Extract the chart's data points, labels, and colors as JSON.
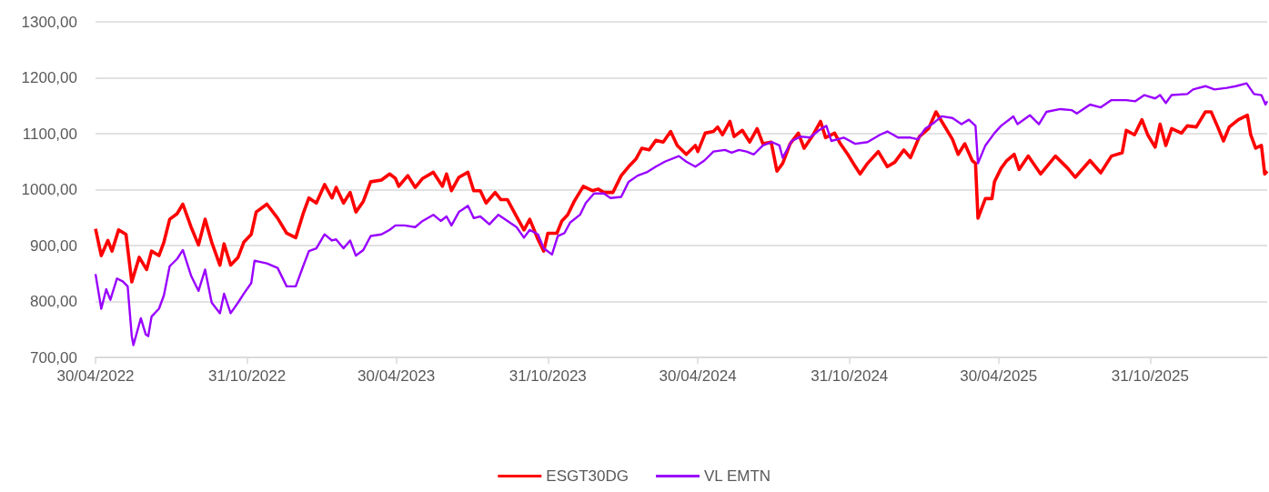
{
  "chart_data": {
    "type": "line",
    "xlim": [
      "2022-04-30",
      "2026-03-22"
    ],
    "xticks": [
      {
        "value": "2022-04-30",
        "label": "30/04/2022"
      },
      {
        "value": "2022-10-31",
        "label": "31/10/2022"
      },
      {
        "value": "2023-04-30",
        "label": "30/04/2023"
      },
      {
        "value": "2023-10-31",
        "label": "31/10/2023"
      },
      {
        "value": "2024-04-30",
        "label": "30/04/2024"
      },
      {
        "value": "2024-10-31",
        "label": "31/10/2024"
      },
      {
        "value": "2025-04-30",
        "label": "30/04/2025"
      },
      {
        "value": "2025-10-31",
        "label": "31/10/2025"
      }
    ],
    "ylim": [
      700,
      1300
    ],
    "yticks": [
      {
        "value": 700,
        "label": "700,00"
      },
      {
        "value": 800,
        "label": "800,00"
      },
      {
        "value": 900,
        "label": "900,00"
      },
      {
        "value": 1000,
        "label": "1000,00"
      },
      {
        "value": 1100,
        "label": "1100,00"
      },
      {
        "value": 1200,
        "label": "1200,00"
      },
      {
        "value": 1300,
        "label": "1300,00"
      }
    ],
    "grid": "y",
    "legend": "bottom",
    "series": [
      {
        "name": "ESGT30DG",
        "color": "#ff0000",
        "x": [
          "2022-04-30",
          "2022-05-07",
          "2022-05-15",
          "2022-05-20",
          "2022-05-28",
          "2022-06-06",
          "2022-06-13",
          "2022-06-22",
          "2022-07-01",
          "2022-07-07",
          "2022-07-16",
          "2022-07-22",
          "2022-07-29",
          "2022-08-07",
          "2022-08-14",
          "2022-08-24",
          "2022-09-02",
          "2022-09-10",
          "2022-09-18",
          "2022-09-28",
          "2022-10-03",
          "2022-10-11",
          "2022-10-20",
          "2022-10-27",
          "2022-11-05",
          "2022-11-11",
          "2022-11-24",
          "2022-12-07",
          "2022-12-18",
          "2022-12-29",
          "2023-01-07",
          "2023-01-14",
          "2023-01-23",
          "2023-02-02",
          "2023-02-11",
          "2023-02-16",
          "2023-02-25",
          "2023-03-05",
          "2023-03-12",
          "2023-03-21",
          "2023-03-30",
          "2023-04-12",
          "2023-04-22",
          "2023-04-29",
          "2023-05-03",
          "2023-05-14",
          "2023-05-23",
          "2023-06-01",
          "2023-06-14",
          "2023-06-25",
          "2023-06-30",
          "2023-07-06",
          "2023-07-15",
          "2023-07-26",
          "2023-08-02",
          "2023-08-10",
          "2023-08-17",
          "2023-08-28",
          "2023-09-04",
          "2023-09-12",
          "2023-09-23",
          "2023-10-02",
          "2023-10-09",
          "2023-10-19",
          "2023-10-26",
          "2023-10-31",
          "2023-11-11",
          "2023-11-17",
          "2023-11-24",
          "2023-12-02",
          "2023-12-13",
          "2023-12-24",
          "2023-12-31",
          "2024-01-07",
          "2024-01-18",
          "2024-01-28",
          "2024-02-06",
          "2024-02-15",
          "2024-02-22",
          "2024-03-02",
          "2024-03-10",
          "2024-03-19",
          "2024-03-28",
          "2024-04-05",
          "2024-04-16",
          "2024-04-27",
          "2024-04-30",
          "2024-05-09",
          "2024-05-19",
          "2024-05-24",
          "2024-05-30",
          "2024-06-08",
          "2024-06-13",
          "2024-06-23",
          "2024-07-02",
          "2024-07-11",
          "2024-07-18",
          "2024-07-28",
          "2024-08-04",
          "2024-08-11",
          "2024-08-20",
          "2024-08-30",
          "2024-09-06",
          "2024-09-17",
          "2024-09-26",
          "2024-10-02",
          "2024-10-13",
          "2024-10-20",
          "2024-10-29",
          "2024-11-06",
          "2024-11-13",
          "2024-11-22",
          "2024-12-05",
          "2024-12-16",
          "2024-12-25",
          "2025-01-05",
          "2025-01-13",
          "2025-01-24",
          "2025-02-04",
          "2025-02-13",
          "2025-02-22",
          "2025-03-05",
          "2025-03-12",
          "2025-03-20",
          "2025-03-29",
          "2025-04-02",
          "2025-04-05",
          "2025-04-14",
          "2025-04-22",
          "2025-04-25",
          "2025-05-03",
          "2025-05-10",
          "2025-05-19",
          "2025-05-25",
          "2025-06-05",
          "2025-06-20",
          "2025-07-08",
          "2025-07-23",
          "2025-08-01",
          "2025-08-19",
          "2025-09-01",
          "2025-09-14",
          "2025-09-27",
          "2025-10-02",
          "2025-10-12",
          "2025-10-21",
          "2025-10-28",
          "2025-11-06",
          "2025-11-12",
          "2025-11-19",
          "2025-11-26",
          "2025-12-08",
          "2025-12-15",
          "2025-12-26",
          "2026-01-06",
          "2026-01-13",
          "2026-01-21",
          "2026-01-28",
          "2026-02-04",
          "2026-02-15",
          "2026-02-26",
          "2026-03-02",
          "2026-03-08",
          "2026-03-15",
          "2026-03-19",
          "2026-03-22"
        ],
        "values": [
          930,
          882,
          909,
          890,
          928,
          920,
          835,
          879,
          857,
          890,
          882,
          906,
          947,
          957,
          974,
          933,
          901,
          947,
          906,
          865,
          903,
          865,
          879,
          906,
          920,
          960,
          974,
          949,
          922,
          914,
          957,
          985,
          976,
          1009,
          985,
          1004,
          976,
          995,
          960,
          979,
          1014,
          1017,
          1028,
          1020,
          1006,
          1025,
          1004,
          1020,
          1031,
          1006,
          1028,
          998,
          1022,
          1031,
          998,
          998,
          976,
          995,
          982,
          982,
          952,
          928,
          947,
          911,
          890,
          922,
          922,
          944,
          955,
          979,
          1006,
          998,
          1001,
          995,
          995,
          1025,
          1041,
          1055,
          1074,
          1071,
          1088,
          1085,
          1104,
          1079,
          1063,
          1079,
          1068,
          1101,
          1104,
          1112,
          1098,
          1122,
          1095,
          1106,
          1085,
          1109,
          1082,
          1085,
          1033,
          1047,
          1082,
          1101,
          1074,
          1098,
          1122,
          1093,
          1101,
          1082,
          1063,
          1044,
          1028,
          1047,
          1068,
          1041,
          1049,
          1071,
          1057,
          1095,
          1109,
          1139,
          1117,
          1090,
          1063,
          1082,
          1052,
          1047,
          949,
          984,
          984,
          1014,
          1038,
          1052,
          1063,
          1036,
          1060,
          1028,
          1060,
          1038,
          1022,
          1052,
          1030,
          1060,
          1066,
          1106,
          1098,
          1125,
          1098,
          1076,
          1117,
          1079,
          1109,
          1101,
          1114,
          1112,
          1139,
          1139,
          1112,
          1087,
          1112,
          1125,
          1133,
          1098,
          1074,
          1079,
          1028,
          1033
        ]
      },
      {
        "name": "VL EMTN",
        "color": "#9900ff",
        "x": [
          "2022-04-30",
          "2022-05-07",
          "2022-05-13",
          "2022-05-18",
          "2022-05-26",
          "2022-06-02",
          "2022-06-08",
          "2022-06-13",
          "2022-06-15",
          "2022-06-24",
          "2022-06-30",
          "2022-07-03",
          "2022-07-07",
          "2022-07-16",
          "2022-07-22",
          "2022-07-29",
          "2022-08-07",
          "2022-08-14",
          "2022-08-24",
          "2022-09-02",
          "2022-09-10",
          "2022-09-18",
          "2022-09-28",
          "2022-10-03",
          "2022-10-11",
          "2022-10-20",
          "2022-10-27",
          "2022-11-05",
          "2022-11-09",
          "2022-11-24",
          "2022-12-07",
          "2022-12-18",
          "2022-12-29",
          "2023-01-07",
          "2023-01-14",
          "2023-01-23",
          "2023-02-02",
          "2023-02-11",
          "2023-02-16",
          "2023-02-25",
          "2023-03-05",
          "2023-03-12",
          "2023-03-21",
          "2023-03-30",
          "2023-04-12",
          "2023-04-22",
          "2023-04-29",
          "2023-05-10",
          "2023-05-23",
          "2023-06-01",
          "2023-06-14",
          "2023-06-23",
          "2023-06-30",
          "2023-07-06",
          "2023-07-15",
          "2023-07-26",
          "2023-08-02",
          "2023-08-10",
          "2023-08-21",
          "2023-09-01",
          "2023-09-12",
          "2023-09-23",
          "2023-10-02",
          "2023-10-09",
          "2023-10-19",
          "2023-10-26",
          "2023-11-05",
          "2023-11-12",
          "2023-11-20",
          "2023-11-27",
          "2023-12-09",
          "2023-12-16",
          "2023-12-26",
          "2024-01-07",
          "2024-01-15",
          "2024-01-28",
          "2024-02-06",
          "2024-02-17",
          "2024-02-28",
          "2024-03-10",
          "2024-03-21",
          "2024-04-07",
          "2024-04-16",
          "2024-04-27",
          "2024-05-08",
          "2024-05-19",
          "2024-06-02",
          "2024-06-10",
          "2024-06-19",
          "2024-06-28",
          "2024-07-07",
          "2024-07-18",
          "2024-07-29",
          "2024-08-07",
          "2024-08-11",
          "2024-08-22",
          "2024-09-02",
          "2024-09-13",
          "2024-09-24",
          "2024-10-03",
          "2024-10-09",
          "2024-10-24",
          "2024-11-07",
          "2024-11-22",
          "2024-12-07",
          "2024-12-16",
          "2024-12-29",
          "2025-01-13",
          "2025-01-22",
          "2025-01-31",
          "2025-02-11",
          "2025-02-20",
          "2025-03-05",
          "2025-03-16",
          "2025-03-25",
          "2025-04-02",
          "2025-04-05",
          "2025-04-14",
          "2025-04-25",
          "2025-05-03",
          "2025-05-18",
          "2025-05-23",
          "2025-06-07",
          "2025-06-18",
          "2025-06-27",
          "2025-07-14",
          "2025-07-28",
          "2025-08-03",
          "2025-08-19",
          "2025-09-01",
          "2025-09-14",
          "2025-10-02",
          "2025-10-13",
          "2025-10-24",
          "2025-11-06",
          "2025-11-12",
          "2025-11-19",
          "2025-11-26",
          "2025-12-15",
          "2025-12-22",
          "2026-01-06",
          "2026-01-17",
          "2026-02-01",
          "2026-02-12",
          "2026-02-25",
          "2026-03-06",
          "2026-03-15",
          "2026-03-20",
          "2026-03-22"
        ],
        "values": [
          849,
          787,
          822,
          803,
          841,
          836,
          827,
          738,
          722,
          770,
          741,
          738,
          773,
          787,
          811,
          863,
          876,
          892,
          846,
          819,
          857,
          798,
          779,
          814,
          779,
          798,
          814,
          833,
          873,
          868,
          860,
          827,
          827,
          863,
          890,
          895,
          920,
          909,
          911,
          895,
          909,
          882,
          892,
          917,
          920,
          928,
          936,
          936,
          933,
          944,
          955,
          944,
          952,
          936,
          960,
          971,
          949,
          952,
          938,
          955,
          944,
          933,
          914,
          928,
          920,
          895,
          884,
          917,
          922,
          941,
          955,
          976,
          993,
          993,
          985,
          987,
          1014,
          1025,
          1031,
          1041,
          1050,
          1060,
          1050,
          1041,
          1052,
          1068,
          1071,
          1066,
          1071,
          1068,
          1063,
          1079,
          1085,
          1079,
          1057,
          1087,
          1095,
          1093,
          1106,
          1114,
          1087,
          1093,
          1082,
          1085,
          1098,
          1104,
          1093,
          1093,
          1090,
          1109,
          1120,
          1131,
          1128,
          1117,
          1125,
          1114,
          1047,
          1079,
          1101,
          1114,
          1131,
          1117,
          1133,
          1117,
          1139,
          1144,
          1142,
          1136,
          1152,
          1147,
          1160,
          1160,
          1158,
          1169,
          1163,
          1169,
          1155,
          1169,
          1171,
          1179,
          1185,
          1179,
          1182,
          1185,
          1190,
          1171,
          1169,
          1152,
          1158
        ]
      }
    ]
  }
}
